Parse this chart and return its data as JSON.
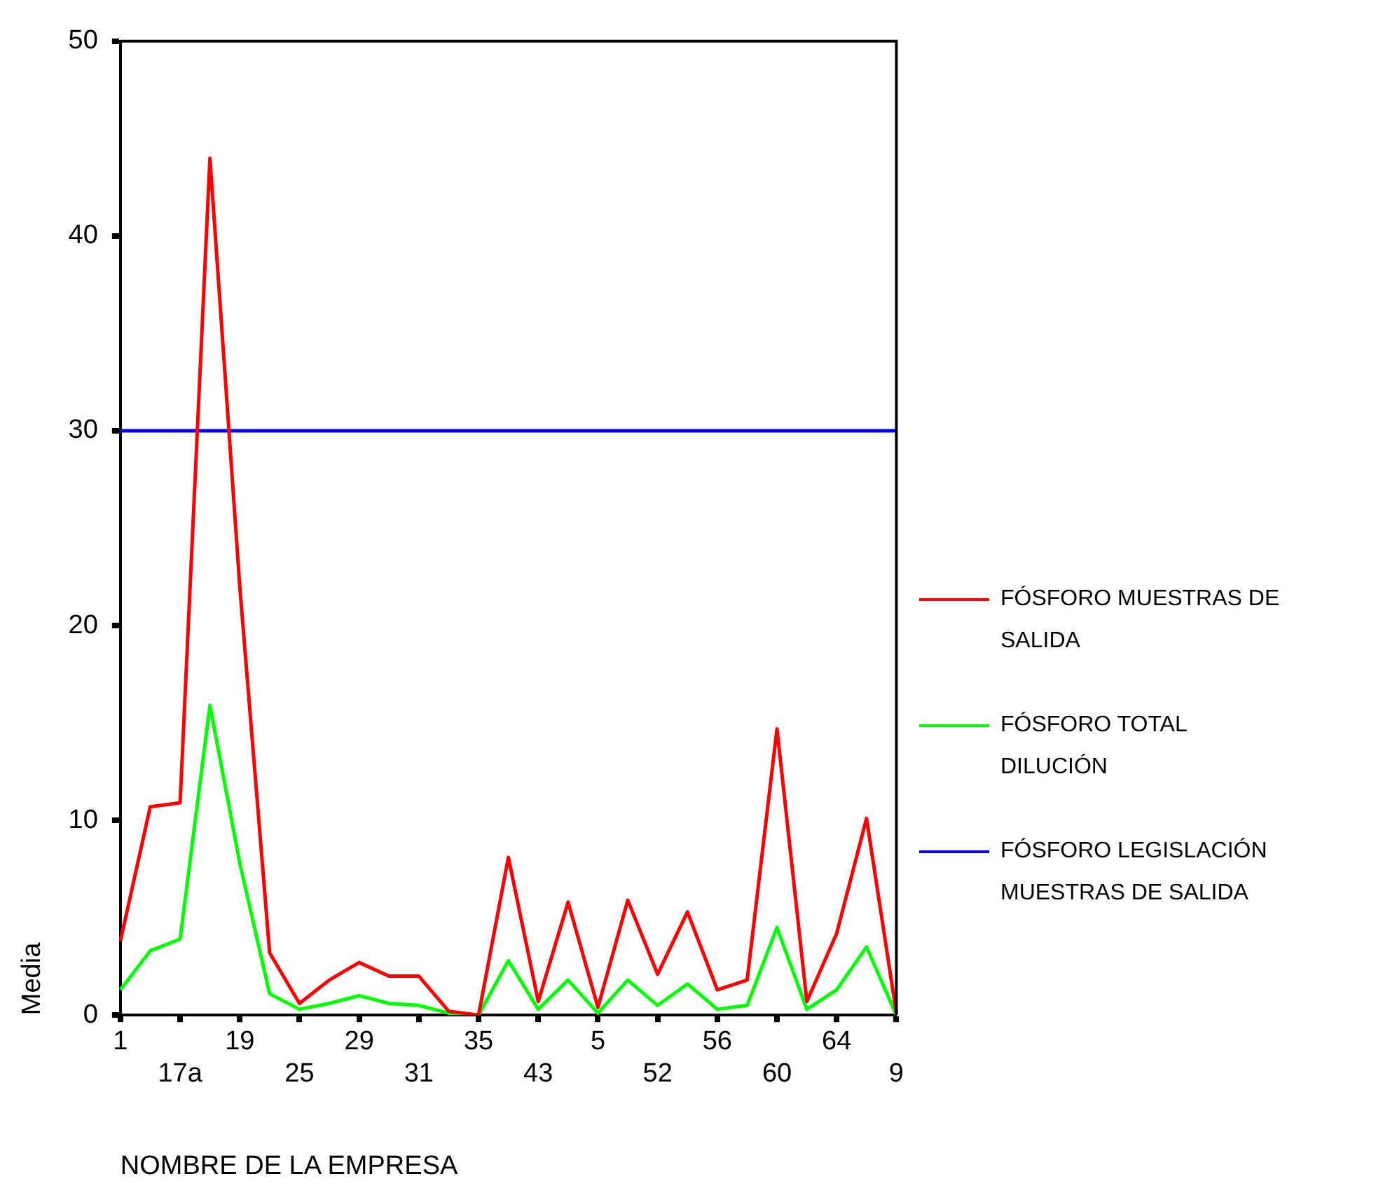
{
  "chart_data": {
    "type": "line",
    "xlabel": "NOMBRE DE LA EMPRESA",
    "ylabel": "Media",
    "categories": [
      "1",
      null,
      "17a",
      null,
      "19",
      null,
      "25",
      null,
      "29",
      null,
      "31",
      null,
      "35",
      null,
      "43",
      null,
      "5",
      null,
      "52",
      null,
      "56",
      null,
      "60",
      null,
      "64",
      null,
      "9"
    ],
    "series": [
      {
        "name": "FÓSFORO MUESTRAS DE SALIDA",
        "color": "#ff0000",
        "values": [
          3.8,
          10.7,
          10.9,
          44.0,
          22,
          3.2,
          0.6,
          1.8,
          2.7,
          2.0,
          2.0,
          0.2,
          0,
          8.1,
          0.7,
          5.8,
          0.4,
          5.9,
          2.1,
          5.3,
          1.3,
          1.8,
          14.7,
          0.7,
          4.2,
          10.1,
          0.1
        ]
      },
      {
        "name": "FÓSFORO TOTAL DILUCIÓN",
        "color": "#00ff00",
        "values": [
          1.3,
          3.3,
          3.9,
          15.9,
          7.8,
          1.1,
          0.3,
          0.6,
          1.0,
          0.6,
          0.5,
          0.1,
          0,
          2.8,
          0.3,
          1.8,
          0.1,
          1.8,
          0.5,
          1.6,
          0.3,
          0.5,
          4.5,
          0.3,
          1.3,
          3.5,
          0
        ]
      },
      {
        "name": "FÓSFORO LEGISLACIÓN MUESTRAS DE SALIDA",
        "color": "#0000ff",
        "values": [
          30,
          30,
          30,
          30,
          30,
          30,
          30,
          30,
          30,
          30,
          30,
          30,
          30,
          30,
          30,
          30,
          30,
          30,
          30,
          30,
          30,
          30,
          30,
          30,
          30,
          30,
          30
        ]
      }
    ],
    "ylim": [
      0,
      50
    ],
    "yticks": [
      0,
      10,
      20,
      30,
      40,
      50
    ],
    "grid": false,
    "legend": "right",
    "marker": "none",
    "line_style": "solid"
  }
}
